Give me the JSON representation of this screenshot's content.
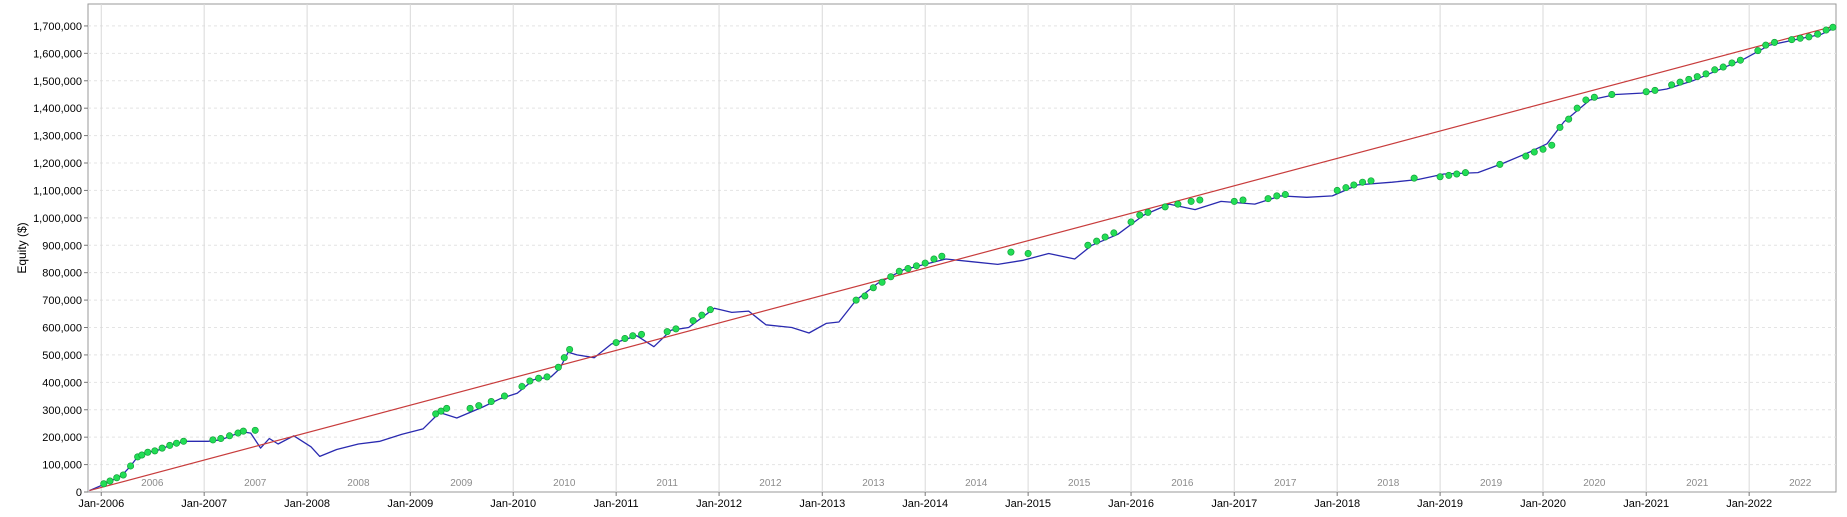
{
  "chart_data": {
    "type": "line",
    "title": "",
    "xlabel": "",
    "ylabel": "Equity ($)",
    "ylim": [
      0,
      1780000
    ],
    "xlim": [
      "2005-11-15",
      "2022-11-05"
    ],
    "grid": true,
    "y_ticks": [
      {
        "value": 0,
        "label": "0"
      },
      {
        "value": 100000,
        "label": "100,000"
      },
      {
        "value": 200000,
        "label": "200,000"
      },
      {
        "value": 300000,
        "label": "300,000"
      },
      {
        "value": 400000,
        "label": "400,000"
      },
      {
        "value": 500000,
        "label": "500,000"
      },
      {
        "value": 600000,
        "label": "600,000"
      },
      {
        "value": 700000,
        "label": "700,000"
      },
      {
        "value": 800000,
        "label": "800,000"
      },
      {
        "value": 900000,
        "label": "900,000"
      },
      {
        "value": 1000000,
        "label": "1,000,000"
      },
      {
        "value": 1100000,
        "label": "1,100,000"
      },
      {
        "value": 1200000,
        "label": "1,200,000"
      },
      {
        "value": 1300000,
        "label": "1,300,000"
      },
      {
        "value": 1400000,
        "label": "1,400,000"
      },
      {
        "value": 1500000,
        "label": "1,500,000"
      },
      {
        "value": 1600000,
        "label": "1,600,000"
      },
      {
        "value": 1700000,
        "label": "1,700,000"
      }
    ],
    "x_ticks": [
      {
        "date": "2006-01-01",
        "label": "Jan-2006"
      },
      {
        "date": "2007-01-01",
        "label": "Jan-2007"
      },
      {
        "date": "2008-01-01",
        "label": "Jan-2008"
      },
      {
        "date": "2009-01-01",
        "label": "Jan-2009"
      },
      {
        "date": "2010-01-01",
        "label": "Jan-2010"
      },
      {
        "date": "2011-01-01",
        "label": "Jan-2011"
      },
      {
        "date": "2012-01-01",
        "label": "Jan-2012"
      },
      {
        "date": "2013-01-01",
        "label": "Jan-2013"
      },
      {
        "date": "2014-01-01",
        "label": "Jan-2014"
      },
      {
        "date": "2015-01-01",
        "label": "Jan-2015"
      },
      {
        "date": "2016-01-01",
        "label": "Jan-2016"
      },
      {
        "date": "2017-01-01",
        "label": "Jan-2017"
      },
      {
        "date": "2018-01-01",
        "label": "Jan-2018"
      },
      {
        "date": "2019-01-01",
        "label": "Jan-2019"
      },
      {
        "date": "2020-01-01",
        "label": "Jan-2020"
      },
      {
        "date": "2021-01-01",
        "label": "Jan-2021"
      },
      {
        "date": "2022-01-01",
        "label": "Jan-2022"
      }
    ],
    "year_labels": [
      {
        "date": "2006-07-01",
        "label": "2006"
      },
      {
        "date": "2007-07-01",
        "label": "2007"
      },
      {
        "date": "2008-07-01",
        "label": "2008"
      },
      {
        "date": "2009-07-01",
        "label": "2009"
      },
      {
        "date": "2010-07-01",
        "label": "2010"
      },
      {
        "date": "2011-07-01",
        "label": "2011"
      },
      {
        "date": "2012-07-01",
        "label": "2012"
      },
      {
        "date": "2013-07-01",
        "label": "2013"
      },
      {
        "date": "2014-07-01",
        "label": "2014"
      },
      {
        "date": "2015-07-01",
        "label": "2015"
      },
      {
        "date": "2016-07-01",
        "label": "2016"
      },
      {
        "date": "2017-07-01",
        "label": "2017"
      },
      {
        "date": "2018-07-01",
        "label": "2018"
      },
      {
        "date": "2019-07-01",
        "label": "2019"
      },
      {
        "date": "2020-07-01",
        "label": "2020"
      },
      {
        "date": "2021-07-01",
        "label": "2021"
      },
      {
        "date": "2022-07-01",
        "label": "2022"
      }
    ],
    "series": [
      {
        "color": "#2a2ab0",
        "style": "line",
        "points": [
          [
            "2005-11-20",
            5000
          ],
          [
            "2006-01-15",
            30000
          ],
          [
            "2006-03-15",
            60000
          ],
          [
            "2006-04-15",
            95000
          ],
          [
            "2006-05-15",
            135000
          ],
          [
            "2006-06-15",
            145000
          ],
          [
            "2006-07-15",
            150000
          ],
          [
            "2006-09-15",
            175000
          ],
          [
            "2006-11-01",
            185000
          ],
          [
            "2007-01-15",
            185000
          ],
          [
            "2007-03-01",
            190000
          ],
          [
            "2007-05-15",
            220000
          ],
          [
            "2007-06-15",
            215000
          ],
          [
            "2007-07-20",
            160000
          ],
          [
            "2007-08-20",
            195000
          ],
          [
            "2007-09-20",
            175000
          ],
          [
            "2007-11-15",
            205000
          ],
          [
            "2008-01-15",
            165000
          ],
          [
            "2008-02-15",
            130000
          ],
          [
            "2008-04-15",
            155000
          ],
          [
            "2008-07-01",
            175000
          ],
          [
            "2008-09-15",
            185000
          ],
          [
            "2008-12-01",
            210000
          ],
          [
            "2009-02-15",
            230000
          ],
          [
            "2009-04-15",
            290000
          ],
          [
            "2009-06-15",
            270000
          ],
          [
            "2009-09-15",
            310000
          ],
          [
            "2009-11-15",
            340000
          ],
          [
            "2010-01-15",
            360000
          ],
          [
            "2010-03-15",
            410000
          ],
          [
            "2010-05-15",
            420000
          ],
          [
            "2010-06-15",
            450000
          ],
          [
            "2010-07-15",
            510000
          ],
          [
            "2010-08-15",
            500000
          ],
          [
            "2010-10-15",
            490000
          ],
          [
            "2010-12-15",
            540000
          ],
          [
            "2011-03-15",
            570000
          ],
          [
            "2011-05-15",
            530000
          ],
          [
            "2011-07-15",
            590000
          ],
          [
            "2011-09-15",
            600000
          ],
          [
            "2011-12-15",
            670000
          ],
          [
            "2012-02-15",
            655000
          ],
          [
            "2012-04-15",
            660000
          ],
          [
            "2012-06-15",
            610000
          ],
          [
            "2012-09-15",
            600000
          ],
          [
            "2012-11-15",
            580000
          ],
          [
            "2013-01-15",
            615000
          ],
          [
            "2013-03-01",
            620000
          ],
          [
            "2013-05-01",
            700000
          ],
          [
            "2013-07-15",
            760000
          ],
          [
            "2013-10-15",
            810000
          ],
          [
            "2014-03-15",
            850000
          ],
          [
            "2014-06-15",
            840000
          ],
          [
            "2014-09-15",
            830000
          ],
          [
            "2014-12-15",
            845000
          ],
          [
            "2015-03-15",
            870000
          ],
          [
            "2015-06-15",
            850000
          ],
          [
            "2015-08-15",
            900000
          ],
          [
            "2015-11-15",
            940000
          ],
          [
            "2016-02-15",
            1010000
          ],
          [
            "2016-05-15",
            1050000
          ],
          [
            "2016-08-15",
            1030000
          ],
          [
            "2016-11-15",
            1060000
          ],
          [
            "2017-03-15",
            1050000
          ],
          [
            "2017-06-15",
            1080000
          ],
          [
            "2017-09-15",
            1075000
          ],
          [
            "2017-12-15",
            1080000
          ],
          [
            "2018-03-15",
            1120000
          ],
          [
            "2018-07-15",
            1130000
          ],
          [
            "2018-10-15",
            1140000
          ],
          [
            "2019-01-15",
            1160000
          ],
          [
            "2019-05-15",
            1165000
          ],
          [
            "2019-08-15",
            1200000
          ],
          [
            "2019-11-15",
            1240000
          ],
          [
            "2020-01-15",
            1270000
          ],
          [
            "2020-03-15",
            1350000
          ],
          [
            "2020-06-15",
            1430000
          ],
          [
            "2020-09-15",
            1450000
          ],
          [
            "2020-12-15",
            1455000
          ],
          [
            "2021-03-15",
            1470000
          ],
          [
            "2021-06-15",
            1500000
          ],
          [
            "2021-09-15",
            1540000
          ],
          [
            "2021-12-15",
            1580000
          ],
          [
            "2022-03-15",
            1630000
          ],
          [
            "2022-06-15",
            1650000
          ],
          [
            "2022-09-15",
            1670000
          ],
          [
            "2022-10-25",
            1690000
          ]
        ]
      },
      {
        "color": "#c83c3c",
        "style": "line",
        "points": [
          [
            "2005-11-20",
            5000
          ],
          [
            "2022-11-01",
            1700000
          ]
        ]
      },
      {
        "color": "#22dd55",
        "style": "marker",
        "points": [
          [
            "2006-01-10",
            30000
          ],
          [
            "2006-02-01",
            40000
          ],
          [
            "2006-02-25",
            52000
          ],
          [
            "2006-03-20",
            62000
          ],
          [
            "2006-04-15",
            95000
          ],
          [
            "2006-05-10",
            128000
          ],
          [
            "2006-05-25",
            135000
          ],
          [
            "2006-06-15",
            145000
          ],
          [
            "2006-07-10",
            150000
          ],
          [
            "2006-08-05",
            160000
          ],
          [
            "2006-09-01",
            170000
          ],
          [
            "2006-09-25",
            178000
          ],
          [
            "2006-10-20",
            185000
          ],
          [
            "2007-02-01",
            190000
          ],
          [
            "2007-03-01",
            195000
          ],
          [
            "2007-04-01",
            205000
          ],
          [
            "2007-05-01",
            215000
          ],
          [
            "2007-05-20",
            222000
          ],
          [
            "2007-07-01",
            225000
          ],
          [
            "2009-04-01",
            285000
          ],
          [
            "2009-04-20",
            295000
          ],
          [
            "2009-05-10",
            305000
          ],
          [
            "2009-08-01",
            305000
          ],
          [
            "2009-09-01",
            315000
          ],
          [
            "2009-10-15",
            330000
          ],
          [
            "2009-12-01",
            350000
          ],
          [
            "2010-02-01",
            385000
          ],
          [
            "2010-03-01",
            405000
          ],
          [
            "2010-04-01",
            415000
          ],
          [
            "2010-05-01",
            420000
          ],
          [
            "2010-06-10",
            455000
          ],
          [
            "2010-07-01",
            490000
          ],
          [
            "2010-07-20",
            520000
          ],
          [
            "2011-01-01",
            545000
          ],
          [
            "2011-02-01",
            560000
          ],
          [
            "2011-03-01",
            570000
          ],
          [
            "2011-04-01",
            575000
          ],
          [
            "2011-07-01",
            585000
          ],
          [
            "2011-08-01",
            595000
          ],
          [
            "2011-10-01",
            625000
          ],
          [
            "2011-11-01",
            645000
          ],
          [
            "2011-12-01",
            665000
          ],
          [
            "2013-05-01",
            700000
          ],
          [
            "2013-06-01",
            715000
          ],
          [
            "2013-07-01",
            745000
          ],
          [
            "2013-08-01",
            765000
          ],
          [
            "2013-09-01",
            785000
          ],
          [
            "2013-10-01",
            805000
          ],
          [
            "2013-11-01",
            815000
          ],
          [
            "2013-12-01",
            825000
          ],
          [
            "2014-01-01",
            835000
          ],
          [
            "2014-02-01",
            850000
          ],
          [
            "2014-03-01",
            860000
          ],
          [
            "2014-11-01",
            875000
          ],
          [
            "2015-01-01",
            870000
          ],
          [
            "2015-08-01",
            900000
          ],
          [
            "2015-09-01",
            915000
          ],
          [
            "2015-10-01",
            930000
          ],
          [
            "2015-11-01",
            945000
          ],
          [
            "2016-01-01",
            985000
          ],
          [
            "2016-02-01",
            1010000
          ],
          [
            "2016-03-01",
            1020000
          ],
          [
            "2016-05-01",
            1040000
          ],
          [
            "2016-06-15",
            1050000
          ],
          [
            "2016-08-01",
            1060000
          ],
          [
            "2016-09-01",
            1065000
          ],
          [
            "2017-01-01",
            1060000
          ],
          [
            "2017-02-01",
            1065000
          ],
          [
            "2017-05-01",
            1070000
          ],
          [
            "2017-06-01",
            1080000
          ],
          [
            "2017-07-01",
            1085000
          ],
          [
            "2018-01-01",
            1100000
          ],
          [
            "2018-02-01",
            1110000
          ],
          [
            "2018-03-01",
            1120000
          ],
          [
            "2018-04-01",
            1130000
          ],
          [
            "2018-05-01",
            1135000
          ],
          [
            "2018-10-01",
            1145000
          ],
          [
            "2019-01-01",
            1150000
          ],
          [
            "2019-02-01",
            1155000
          ],
          [
            "2019-03-01",
            1160000
          ],
          [
            "2019-04-01",
            1165000
          ],
          [
            "2019-08-01",
            1195000
          ],
          [
            "2019-11-01",
            1225000
          ],
          [
            "2019-12-01",
            1240000
          ],
          [
            "2020-01-01",
            1250000
          ],
          [
            "2020-02-01",
            1265000
          ],
          [
            "2020-03-01",
            1330000
          ],
          [
            "2020-04-01",
            1360000
          ],
          [
            "2020-05-01",
            1400000
          ],
          [
            "2020-06-01",
            1430000
          ],
          [
            "2020-07-01",
            1440000
          ],
          [
            "2020-09-01",
            1450000
          ],
          [
            "2021-01-01",
            1460000
          ],
          [
            "2021-02-01",
            1465000
          ],
          [
            "2021-04-01",
            1485000
          ],
          [
            "2021-05-01",
            1495000
          ],
          [
            "2021-06-01",
            1505000
          ],
          [
            "2021-07-01",
            1515000
          ],
          [
            "2021-08-01",
            1525000
          ],
          [
            "2021-09-01",
            1540000
          ],
          [
            "2021-10-01",
            1550000
          ],
          [
            "2021-11-01",
            1565000
          ],
          [
            "2021-12-01",
            1575000
          ],
          [
            "2022-02-01",
            1610000
          ],
          [
            "2022-03-01",
            1630000
          ],
          [
            "2022-04-01",
            1640000
          ],
          [
            "2022-06-01",
            1650000
          ],
          [
            "2022-07-01",
            1655000
          ],
          [
            "2022-08-01",
            1660000
          ],
          [
            "2022-09-01",
            1670000
          ],
          [
            "2022-10-01",
            1685000
          ],
          [
            "2022-10-25",
            1695000
          ]
        ]
      }
    ]
  }
}
